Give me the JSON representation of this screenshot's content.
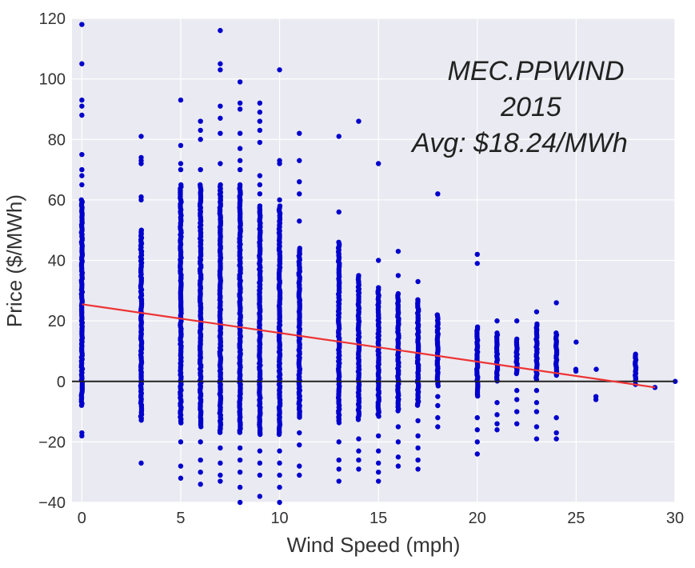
{
  "chart_data": {
    "type": "scatter",
    "title": "",
    "xlabel": "Wind Speed (mph)",
    "ylabel": "Price ($/MWh)",
    "xlim": [
      -0.5,
      30
    ],
    "ylim": [
      -40,
      120
    ],
    "xticks": [
      0,
      5,
      10,
      15,
      20,
      25,
      30
    ],
    "yticks": [
      -40,
      -20,
      0,
      20,
      40,
      60,
      80,
      100,
      120
    ],
    "grid": true,
    "annotation": [
      "MEC.PPWIND",
      "2015",
      "Avg: $18.24/MWh"
    ],
    "colors": {
      "points": "#0000cc",
      "trend": "#ee3333",
      "zero_line": "#222222",
      "plot_bg": "#eaeaf2",
      "grid": "#ffffff"
    },
    "trend_line": {
      "x": [
        0,
        29
      ],
      "y": [
        25.5,
        -2
      ]
    },
    "zero_line_y": 0,
    "series": [
      {
        "x": 0,
        "min": -8,
        "max": 60,
        "outliers": [
          -17,
          -18,
          65,
          68,
          70,
          75,
          88,
          91,
          93,
          105,
          118
        ]
      },
      {
        "x": 3,
        "min": -13,
        "max": 50,
        "outliers": [
          -27,
          60,
          61,
          72,
          73,
          74,
          81
        ]
      },
      {
        "x": 5,
        "min": -14,
        "max": 65,
        "outliers": [
          -20,
          -28,
          -32,
          70,
          72,
          78,
          93
        ]
      },
      {
        "x": 6,
        "min": -15,
        "max": 65,
        "outliers": [
          -20,
          -26,
          -30,
          -34,
          70,
          80,
          83,
          86
        ]
      },
      {
        "x": 7,
        "min": -17,
        "max": 65,
        "outliers": [
          -22,
          -27,
          -31,
          -33,
          72,
          82,
          87,
          91,
          103,
          105,
          116
        ]
      },
      {
        "x": 8,
        "min": -17,
        "max": 65,
        "outliers": [
          -22,
          -26,
          -30,
          -35,
          -40,
          70,
          73,
          77,
          82,
          90,
          92,
          99
        ]
      },
      {
        "x": 9,
        "min": -18,
        "max": 58,
        "outliers": [
          -23,
          -27,
          -31,
          -38,
          62,
          65,
          68,
          79,
          83,
          86,
          89,
          92
        ]
      },
      {
        "x": 10,
        "min": -18,
        "max": 58,
        "outliers": [
          -23,
          -27,
          -31,
          -35,
          -40,
          60,
          72,
          73,
          103
        ]
      },
      {
        "x": 11,
        "min": -12,
        "max": 44,
        "outliers": [
          -17,
          -21,
          -28,
          -31,
          53,
          62,
          66,
          73,
          82
        ]
      },
      {
        "x": 13,
        "min": -14,
        "max": 46,
        "outliers": [
          -20,
          -26,
          -29,
          -33,
          56,
          81
        ]
      },
      {
        "x": 14,
        "min": -13,
        "max": 35,
        "outliers": [
          -19,
          -23,
          -26,
          -29,
          86
        ]
      },
      {
        "x": 15,
        "min": -12,
        "max": 31,
        "outliers": [
          -18,
          -23,
          -27,
          -30,
          -33,
          40,
          72
        ]
      },
      {
        "x": 16,
        "min": -10,
        "max": 29,
        "outliers": [
          -15,
          -20,
          -25,
          -28,
          35,
          43
        ]
      },
      {
        "x": 17,
        "min": -8,
        "max": 27,
        "outliers": [
          -13,
          -18,
          -22,
          -26,
          -29,
          33
        ]
      },
      {
        "x": 18,
        "min": -2,
        "max": 22,
        "outliers": [
          -5,
          -8,
          -12,
          -15,
          62
        ]
      },
      {
        "x": 20,
        "min": -5,
        "max": 18,
        "outliers": [
          -12,
          -16,
          -20,
          -24,
          39,
          42
        ]
      },
      {
        "x": 21,
        "min": 0,
        "max": 16,
        "outliers": [
          -7,
          -11,
          -14,
          -16,
          20
        ]
      },
      {
        "x": 22,
        "min": 2,
        "max": 14,
        "outliers": [
          -3,
          -6,
          -10,
          -14,
          20
        ]
      },
      {
        "x": 23,
        "min": 0,
        "max": 19,
        "outliers": [
          -3,
          -7,
          -10,
          -15,
          -19,
          23
        ]
      },
      {
        "x": 24,
        "min": 2,
        "max": 16,
        "outliers": [
          -12,
          -17,
          -19,
          26
        ]
      },
      {
        "x": 25,
        "min": 3,
        "max": 4,
        "outliers": [
          13
        ]
      },
      {
        "x": 26,
        "min": 4,
        "max": 4,
        "outliers": [
          -5,
          -6
        ]
      },
      {
        "x": 28,
        "min": 0,
        "max": 9,
        "outliers": [
          -1
        ]
      },
      {
        "x": 29,
        "min": -2,
        "max": -2,
        "outliers": []
      },
      {
        "x": 30,
        "min": 0,
        "max": 0,
        "outliers": []
      }
    ]
  }
}
